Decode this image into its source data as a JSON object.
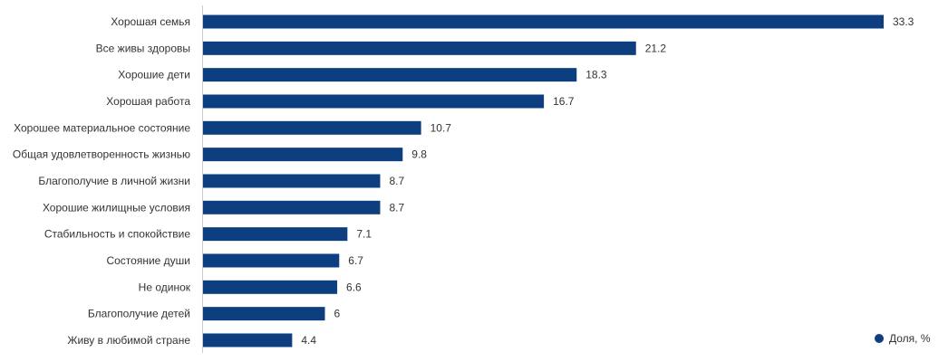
{
  "chart_data": {
    "type": "bar",
    "orientation": "horizontal",
    "categories": [
      "Хорошая семья",
      "Все живы здоровы",
      "Хорошие дети",
      "Хорошая работа",
      "Хорошее материальное состояние",
      "Общая удовлетворенность жизнью",
      "Благополучие в личной жизни",
      "Хорошие жилищные условия",
      "Стабильность и спокойствие",
      "Состояние души",
      "Не одинок",
      "Благополучие детей",
      "Живу в любимой стране"
    ],
    "series": [
      {
        "name": "Доля, %",
        "values": [
          33.3,
          21.2,
          18.3,
          16.7,
          10.7,
          9.8,
          8.7,
          8.7,
          7.1,
          6.7,
          6.6,
          6,
          4.4
        ],
        "color": "#0d3f80"
      }
    ],
    "value_labels": [
      "33.3",
      "21.2",
      "18.3",
      "16.7",
      "10.7",
      "9.8",
      "8.7",
      "8.7",
      "7.1",
      "6.7",
      "6.6",
      "6",
      "4.4"
    ],
    "xlim": [
      0,
      33.3
    ],
    "grid": false,
    "legend_position": "bottom-right",
    "title": "",
    "xlabel": "",
    "ylabel": ""
  }
}
